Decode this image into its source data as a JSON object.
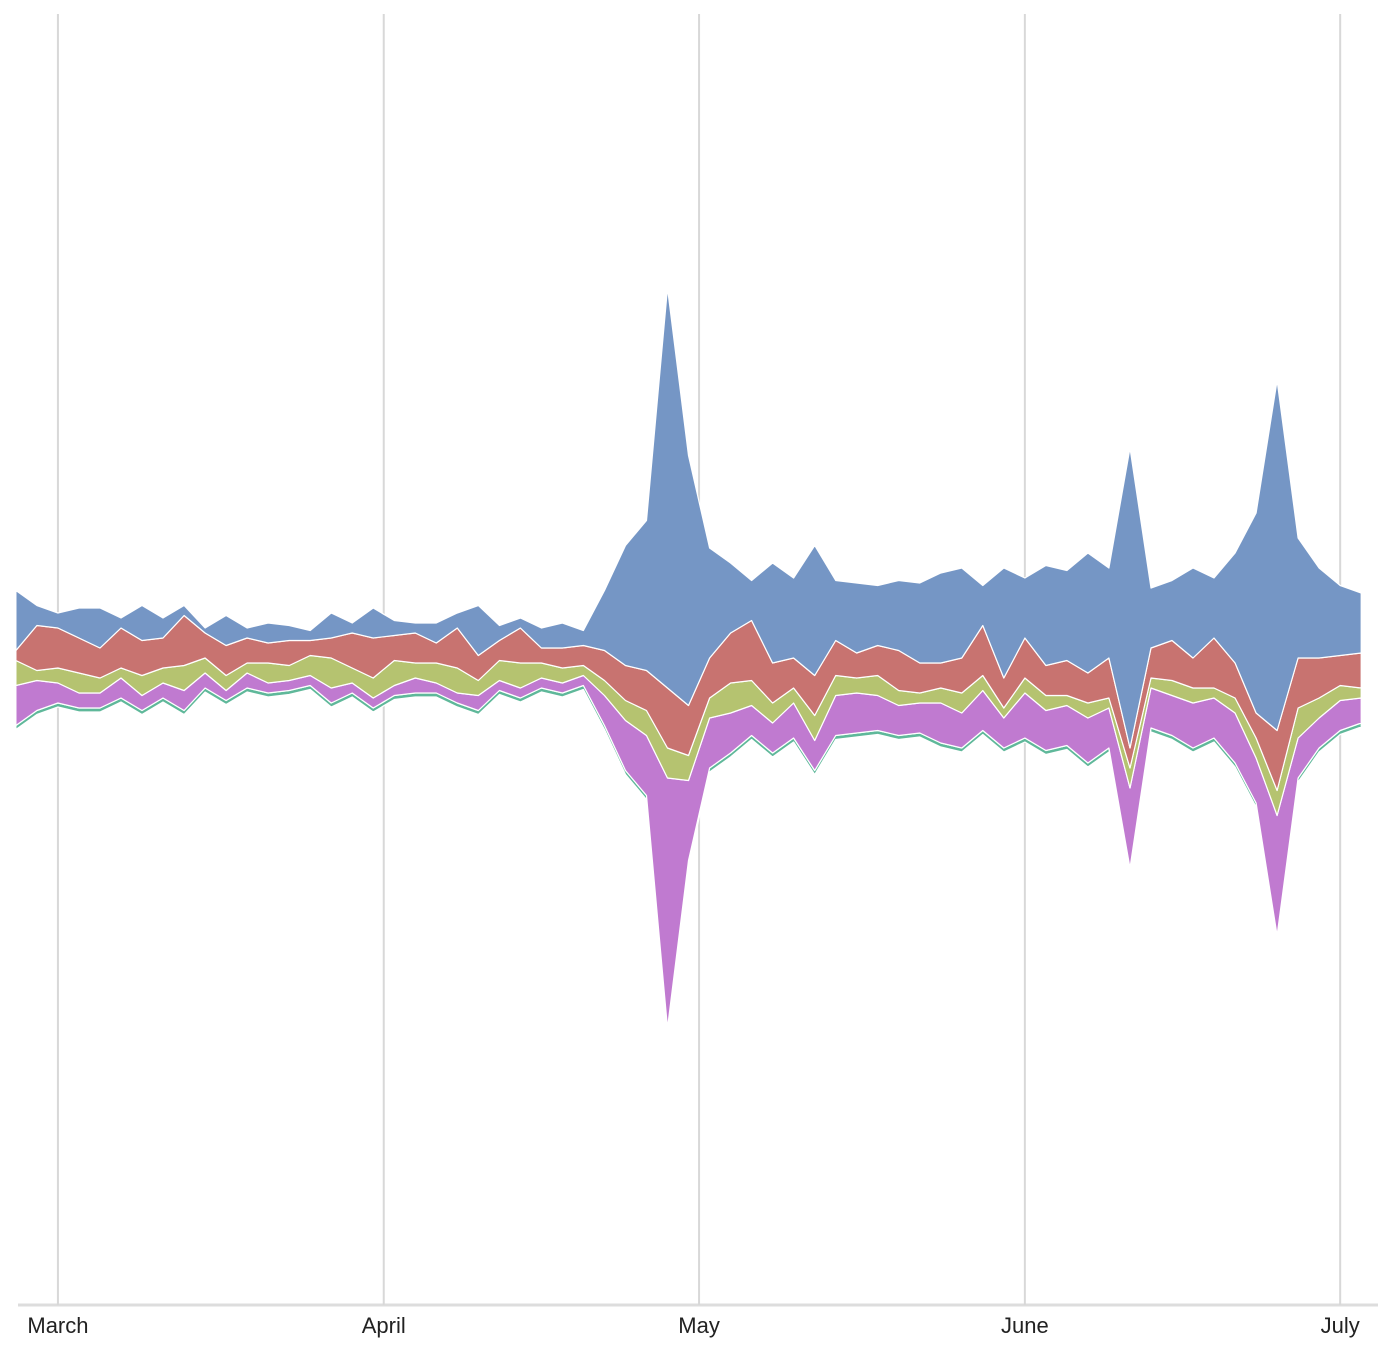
{
  "chart_data": {
    "type": "streamgraph",
    "x": [
      -4,
      -2,
      0,
      2,
      4,
      6,
      8,
      10,
      12,
      14,
      16,
      18,
      20,
      22,
      24,
      26,
      28,
      30,
      32,
      34,
      36,
      38,
      40,
      42,
      44,
      46,
      48,
      50,
      52,
      54,
      56,
      58,
      60,
      62,
      64,
      66,
      68,
      70,
      72,
      74,
      76,
      78,
      80,
      82,
      84,
      86,
      88,
      90,
      92,
      94,
      96,
      98,
      100,
      102,
      104,
      106,
      108,
      110,
      112,
      114,
      116,
      118,
      120,
      122,
      124
    ],
    "xlim": [
      -3.8,
      125.6
    ],
    "xticks": [
      {
        "value": 0,
        "label": "March"
      },
      {
        "value": 31,
        "label": "April"
      },
      {
        "value": 61,
        "label": "May"
      },
      {
        "value": 92,
        "label": "June"
      },
      {
        "value": 122,
        "label": "July"
      }
    ],
    "grid": true,
    "series": [
      {
        "color": "#5fb89a",
        "values": [
          4,
          4,
          4,
          4,
          4,
          4,
          4,
          4,
          4,
          4,
          4,
          4,
          4,
          4,
          4,
          4,
          4,
          4,
          4,
          4,
          4,
          4,
          4,
          4,
          4,
          4,
          4,
          4,
          4,
          4,
          4,
          4,
          4,
          4,
          4,
          4,
          4,
          4,
          4,
          4,
          4,
          4,
          4,
          4,
          4,
          4,
          4,
          4,
          4,
          4,
          4,
          4,
          4,
          4,
          4,
          4,
          4,
          4,
          4,
          4,
          4,
          4,
          4,
          4,
          4
        ]
      },
      {
        "color": "#c07ad0",
        "values": [
          40,
          30,
          20,
          15,
          15,
          20,
          15,
          15,
          20,
          15,
          10,
          15,
          10,
          10,
          10,
          15,
          10,
          10,
          10,
          15,
          10,
          10,
          15,
          10,
          10,
          10,
          10,
          10,
          30,
          50,
          60,
          250,
          80,
          50,
          40,
          30,
          30,
          35,
          30,
          40,
          40,
          35,
          30,
          30,
          40,
          35,
          40,
          30,
          45,
          40,
          40,
          45,
          40,
          80,
          40,
          40,
          45,
          40,
          50,
          45,
          120,
          40,
          30,
          30,
          25
        ]
      },
      {
        "color": "#b5c370",
        "values": [
          25,
          10,
          15,
          20,
          15,
          10,
          20,
          15,
          25,
          15,
          15,
          10,
          20,
          15,
          20,
          30,
          15,
          20,
          25,
          15,
          20,
          25,
          15,
          20,
          25,
          15,
          15,
          10,
          15,
          20,
          25,
          30,
          25,
          20,
          30,
          25,
          20,
          15,
          25,
          20,
          15,
          20,
          15,
          10,
          15,
          20,
          15,
          10,
          15,
          15,
          10,
          15,
          10,
          20,
          10,
          15,
          15,
          10,
          15,
          20,
          25,
          30,
          20,
          15,
          10
        ]
      },
      {
        "color": "#c87370",
        "values": [
          10,
          45,
          40,
          35,
          30,
          40,
          35,
          30,
          50,
          25,
          30,
          25,
          20,
          25,
          15,
          20,
          35,
          40,
          25,
          30,
          20,
          40,
          25,
          20,
          35,
          15,
          20,
          20,
          30,
          35,
          40,
          60,
          50,
          40,
          50,
          60,
          40,
          30,
          40,
          35,
          25,
          30,
          40,
          30,
          25,
          35,
          50,
          30,
          40,
          30,
          35,
          30,
          40,
          20,
          30,
          40,
          30,
          50,
          35,
          25,
          60,
          50,
          40,
          30,
          35
        ]
      },
      {
        "color": "#7596c5",
        "values": [
          60,
          20,
          15,
          30,
          40,
          10,
          35,
          20,
          10,
          5,
          30,
          10,
          20,
          15,
          10,
          25,
          10,
          30,
          15,
          10,
          20,
          15,
          50,
          15,
          10,
          20,
          25,
          15,
          60,
          120,
          150,
          400,
          250,
          110,
          70,
          40,
          100,
          80,
          130,
          60,
          70,
          60,
          70,
          80,
          90,
          90,
          40,
          110,
          60,
          100,
          90,
          120,
          90,
          300,
          60,
          60,
          90,
          60,
          110,
          200,
          350,
          120,
          90,
          70,
          60
        ]
      }
    ]
  }
}
